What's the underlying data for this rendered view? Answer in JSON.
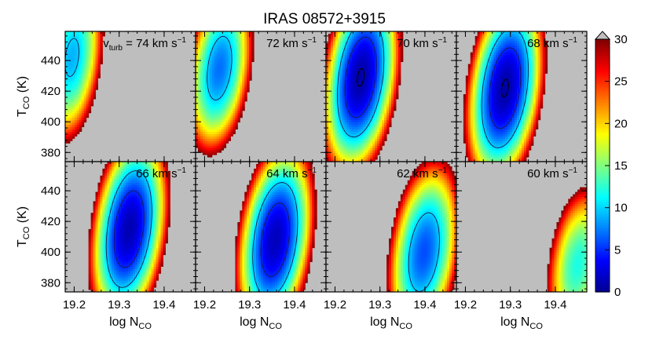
{
  "chart_data": {
    "type": "heatmap",
    "title": "IRAS 08572+3915",
    "xlabel": {
      "main": "log N",
      "sub": "CO"
    },
    "ylabel": {
      "main": "T",
      "sub": "CO",
      "unit": " (K)"
    },
    "xlim": [
      19.18,
      19.47
    ],
    "ylim": [
      374,
      459
    ],
    "xticks": [
      19.2,
      19.3,
      19.4
    ],
    "xtick_labels": [
      "19.2",
      "19.3",
      "19.4"
    ],
    "yticks": [
      380,
      400,
      420,
      440
    ],
    "ytick_labels": [
      "380",
      "400",
      "420",
      "440"
    ],
    "colorbar": {
      "min": 0,
      "max": 30,
      "ticks": [
        0,
        5,
        10,
        15,
        20,
        25,
        30
      ],
      "tick_labels": [
        "0",
        "5",
        "10",
        "15",
        "20",
        "25",
        "30"
      ],
      "extend": "max"
    },
    "background_color": "#bebebe",
    "colormap": [
      "#00008f",
      "#0000ff",
      "#0080ff",
      "#00ffff",
      "#80ff80",
      "#ffff00",
      "#ff8000",
      "#ff0000",
      "#800000"
    ],
    "contour_levels": [
      1,
      5,
      10
    ],
    "panel_label_prefix": {
      "main": "v",
      "sub": "turb",
      "rest": " = "
    },
    "panel_label_unit": " km s",
    "panel_label_exp": "−1",
    "panels": [
      {
        "v_turb": 74,
        "label": "74",
        "center_logN": 19.195,
        "center_T": 442,
        "min_chi2": 9,
        "sigma_logN": 0.036,
        "sigma_T": 29,
        "tilt": -0.3,
        "cutoff": 30
      },
      {
        "v_turb": 72,
        "label": "72",
        "center_logN": 19.233,
        "center_T": 435,
        "min_chi2": 7,
        "sigma_logN": 0.037,
        "sigma_T": 28,
        "tilt": -0.3,
        "cutoff": 30
      },
      {
        "v_turb": 70,
        "label": "70",
        "center_logN": 19.257,
        "center_T": 429,
        "min_chi2": 0.8,
        "sigma_logN": 0.04,
        "sigma_T": 30,
        "tilt": -0.3,
        "cutoff": 30
      },
      {
        "v_turb": 68,
        "label": "68",
        "center_logN": 19.288,
        "center_T": 422,
        "min_chi2": 0.8,
        "sigma_logN": 0.04,
        "sigma_T": 30,
        "tilt": -0.3,
        "cutoff": 30
      },
      {
        "v_turb": 66,
        "label": "66",
        "center_logN": 19.322,
        "center_T": 415,
        "min_chi2": 1.2,
        "sigma_logN": 0.04,
        "sigma_T": 30,
        "tilt": -0.3,
        "cutoff": 30
      },
      {
        "v_turb": 64,
        "label": "64",
        "center_logN": 19.357,
        "center_T": 408,
        "min_chi2": 1.5,
        "sigma_logN": 0.04,
        "sigma_T": 30,
        "tilt": -0.3,
        "cutoff": 30
      },
      {
        "v_turb": 62,
        "label": "62",
        "center_logN": 19.398,
        "center_T": 400,
        "min_chi2": 6,
        "sigma_logN": 0.04,
        "sigma_T": 30,
        "tilt": -0.3,
        "cutoff": 30
      },
      {
        "v_turb": 60,
        "label": "60",
        "center_logN": 19.45,
        "center_T": 392,
        "min_chi2": 12,
        "sigma_logN": 0.038,
        "sigma_T": 28,
        "tilt": -0.3,
        "cutoff": 30
      }
    ]
  }
}
